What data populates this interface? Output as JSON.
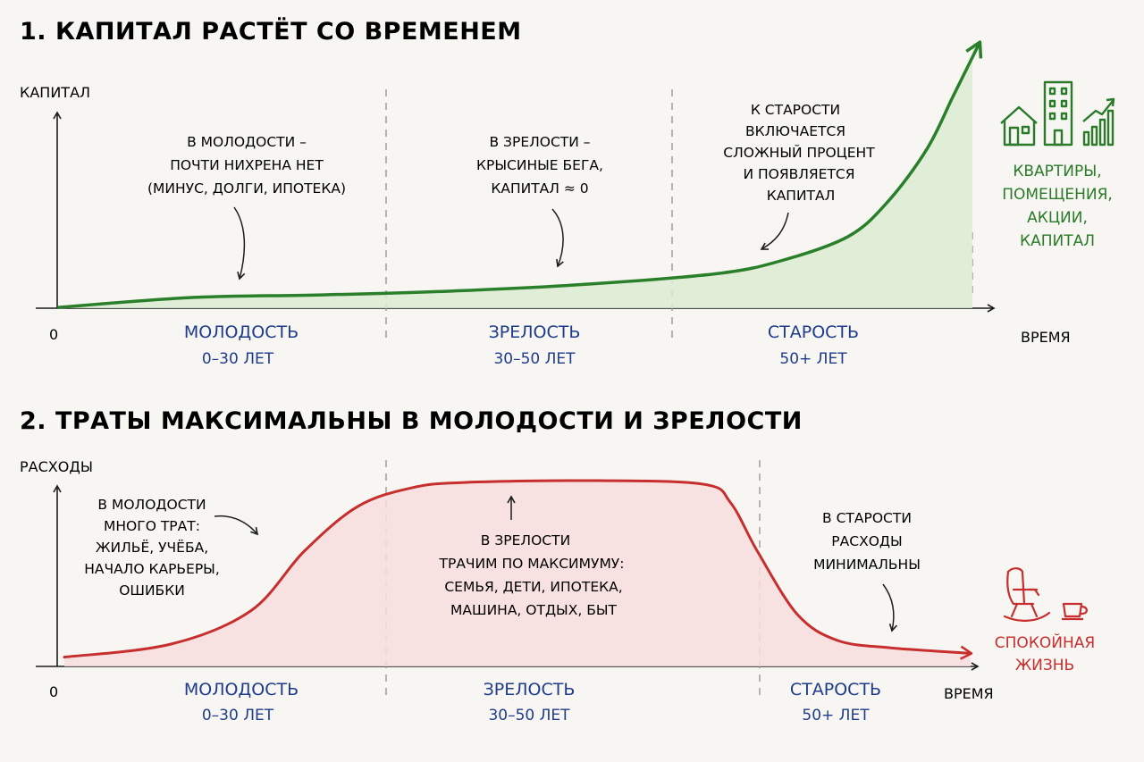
{
  "chart_data": [
    {
      "type": "area",
      "title": "1. КАПИТАЛ РАСТЁТ СО ВРЕМЕНЕМ",
      "ylabel": "КАПИТАЛ",
      "xlabel": "ВРЕМЯ",
      "origin_label": "0",
      "color": "#2a7f2a",
      "fill": "#dcebd2",
      "grid": false,
      "phases": [
        {
          "name": "МОЛОДОСТЬ",
          "range": "0–30 ЛЕТ"
        },
        {
          "name": "ЗРЕЛОСТЬ",
          "range": "30–50 ЛЕТ"
        },
        {
          "name": "СТАРОСТЬ",
          "range": "50+ ЛЕТ"
        }
      ],
      "series": [
        {
          "x": [
            0,
            10,
            20,
            30,
            40,
            50,
            55,
            60,
            63,
            66,
            68,
            70
          ],
          "values": [
            0.3,
            4,
            5,
            6.5,
            9,
            13,
            18,
            27,
            40,
            60,
            80,
            100
          ]
        }
      ],
      "ylim": [
        0,
        100
      ],
      "annotations": [
        {
          "lines": [
            "В МОЛОДОСТИ –",
            "ПОЧТИ НИХРЕНА НЕТ",
            "(МИНУС, ДОЛГИ, ИПОТЕКА)"
          ]
        },
        {
          "lines": [
            "В ЗРЕЛОСТИ –",
            "КРЫСИНЫЕ БЕГА,",
            "КАПИТАЛ ≈ 0"
          ]
        },
        {
          "lines": [
            "К СТАРОСТИ",
            "ВКЛЮЧАЕТСЯ",
            "СЛОЖНЫЙ ПРОЦЕНТ",
            "И ПОЯВЛЯЕТСЯ",
            "КАПИТАЛ"
          ]
        }
      ],
      "end_label": [
        "КВАРТИРЫ,",
        "ПОМЕЩЕНИЯ,",
        "АКЦИИ,",
        "КАПИТАЛ"
      ],
      "end_icons": [
        "house-icon",
        "building-icon",
        "rising-chart-icon"
      ]
    },
    {
      "type": "area",
      "title": "2. ТРАТЫ МАКСИМАЛЬНЫ В МОЛОДОСТИ И ЗРЕЛОСТИ",
      "ylabel": "РАСХОДЫ",
      "xlabel": "ВРЕМЯ",
      "origin_label": "0",
      "color": "#c72e2e",
      "fill": "#f8dede",
      "grid": false,
      "phases": [
        {
          "name": "МОЛОДОСТЬ",
          "range": "0–30 ЛЕТ"
        },
        {
          "name": "ЗРЕЛОСТЬ",
          "range": "30–50 ЛЕТ"
        },
        {
          "name": "СТАРОСТЬ",
          "range": "50+ ЛЕТ"
        }
      ],
      "series": [
        {
          "x": [
            0,
            8,
            14,
            18,
            22,
            26,
            30,
            40,
            48,
            50,
            52,
            55,
            58,
            62,
            68
          ],
          "values": [
            5,
            12,
            30,
            62,
            86,
            96,
            99,
            100,
            98,
            88,
            62,
            28,
            14,
            10,
            7
          ]
        }
      ],
      "ylim": [
        0,
        100
      ],
      "annotations": [
        {
          "lines": [
            "В МОЛОДОСТИ",
            "МНОГО ТРАТ:",
            "ЖИЛЬЁ, УЧЁБА,",
            "НАЧАЛО КАРЬЕРЫ,",
            "ОШИБКИ"
          ]
        },
        {
          "lines": [
            "В ЗРЕЛОСТИ",
            "ТРАЧИМ ПО МАКСИМУМУ:",
            "СЕМЬЯ, ДЕТИ, ИПОТЕКА,",
            "МАШИНА, ОТДЫХ, БЫТ"
          ]
        },
        {
          "lines": [
            "В СТАРОСТИ",
            "РАСХОДЫ",
            "МИНИМАЛЬНЫ"
          ]
        }
      ],
      "end_label": [
        "СПОКОЙНАЯ",
        "ЖИЗНЬ"
      ],
      "end_icons": [
        "rocking-chair-icon",
        "cup-icon"
      ]
    }
  ]
}
